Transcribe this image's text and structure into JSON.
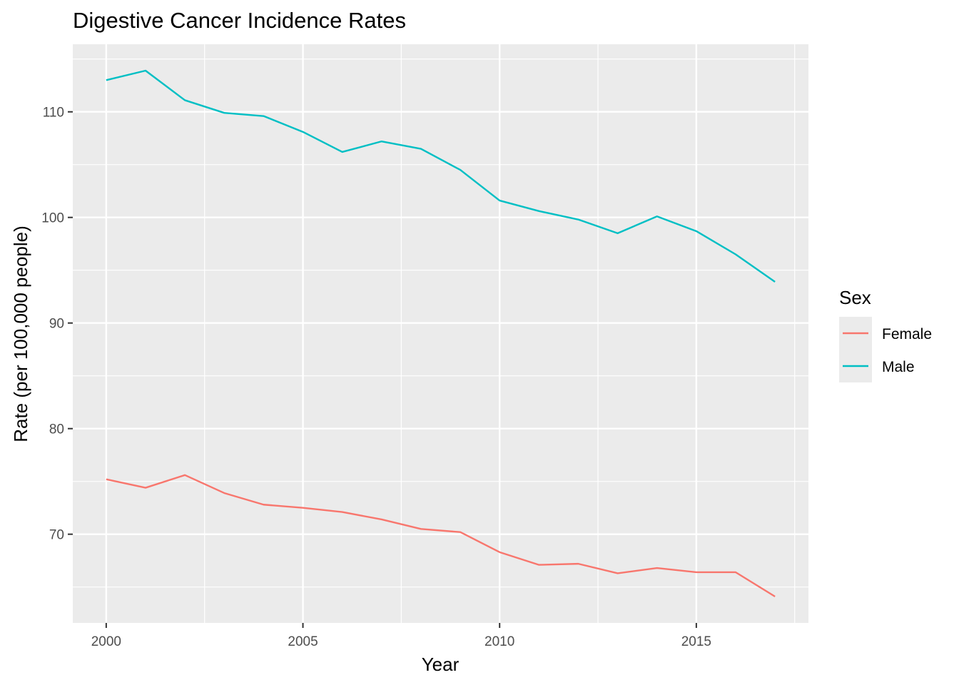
{
  "chart_data": {
    "type": "line",
    "title": "Digestive Cancer Incidence Rates",
    "xlabel": "Year",
    "ylabel": "Rate (per 100,000 people)",
    "x": [
      2000,
      2001,
      2002,
      2003,
      2004,
      2005,
      2006,
      2007,
      2008,
      2009,
      2010,
      2011,
      2012,
      2013,
      2014,
      2015,
      2016,
      2017
    ],
    "series": [
      {
        "name": "Female",
        "color": "#F8766D",
        "values": [
          75.2,
          74.4,
          75.6,
          73.9,
          72.8,
          72.5,
          72.1,
          71.4,
          70.5,
          70.2,
          68.3,
          67.1,
          67.2,
          66.3,
          66.8,
          66.4,
          66.4,
          64.1
        ]
      },
      {
        "name": "Male",
        "color": "#00BFC4",
        "values": [
          113.0,
          113.9,
          111.1,
          109.9,
          109.6,
          108.1,
          106.2,
          107.2,
          106.5,
          104.5,
          101.6,
          100.6,
          99.8,
          98.5,
          100.1,
          98.7,
          96.5,
          93.9
        ]
      }
    ],
    "xlim": [
      1999.15,
      2017.85
    ],
    "ylim": [
      61.6,
      116.4
    ],
    "x_ticks": [
      2000,
      2005,
      2010,
      2015
    ],
    "x_tick_labels": [
      "2000",
      "2005",
      "2010",
      "2015"
    ],
    "x_minor_ticks": [
      2002.5,
      2007.5,
      2012.5,
      2017.5
    ],
    "y_ticks": [
      70,
      80,
      90,
      100,
      110
    ],
    "y_tick_labels": [
      "70",
      "80",
      "90",
      "100",
      "110"
    ],
    "y_minor_ticks": [
      65,
      75,
      85,
      95,
      105,
      115
    ],
    "grid": true,
    "panel_color": "#EBEBEB",
    "legend": {
      "title": "Sex",
      "position": "right",
      "entries": [
        "Female",
        "Male"
      ]
    }
  }
}
